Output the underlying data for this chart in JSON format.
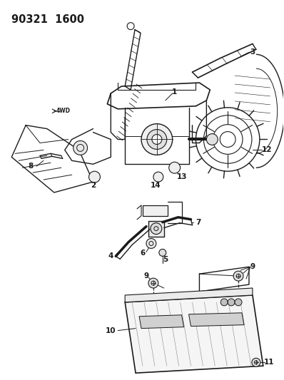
{
  "title_code": "90321  1600",
  "bg_color": "#ffffff",
  "line_color": "#1a1a1a",
  "title_fontsize": 10.5,
  "label_fontsize": 7.5,
  "fig_w": 3.98,
  "fig_h": 5.33,
  "dpi": 100
}
